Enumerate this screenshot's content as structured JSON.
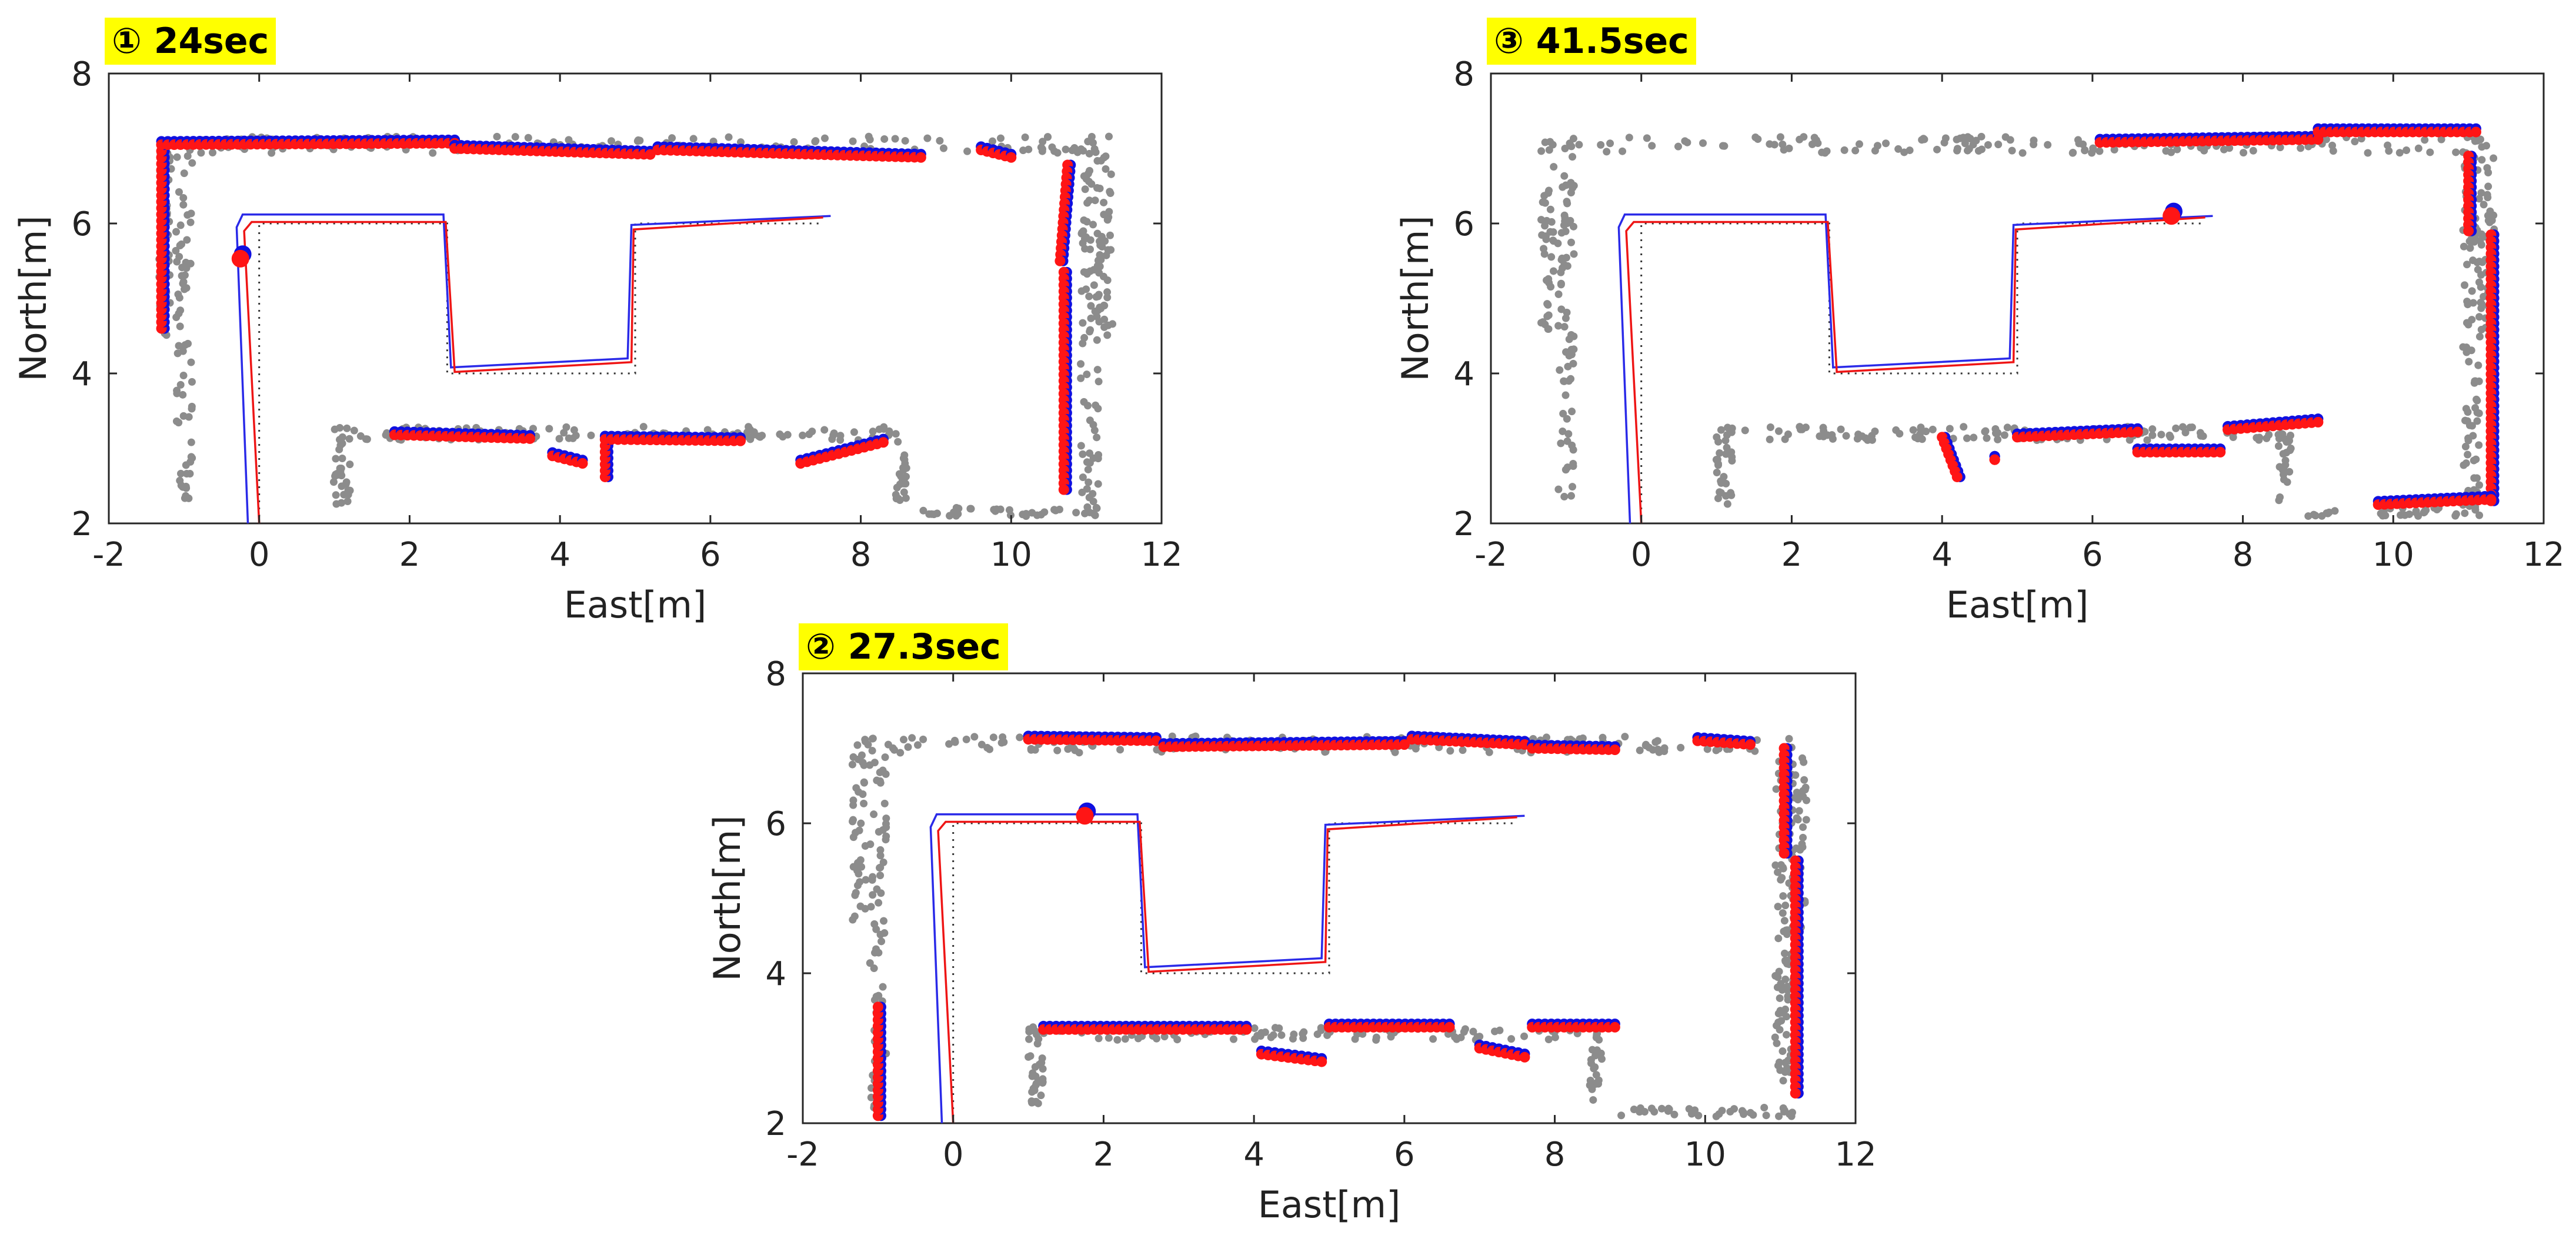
{
  "colors": {
    "obstacle": "#8c8c8c",
    "map_blue": "#1010e0",
    "map_red": "#ff1515",
    "path_blue": "#2a2ae8",
    "path_red": "#ee1515",
    "reference": "#333333",
    "badge": "#ffff00"
  },
  "chart_data": [
    {
      "id": "panel-1",
      "type": "scatter",
      "badge": "① 24sec",
      "xlabel": "East[m]",
      "ylabel": "North[m]",
      "xlim": [
        -2,
        12
      ],
      "ylim": [
        2,
        8
      ],
      "xticks": [
        "-2",
        "0",
        "2",
        "4",
        "6",
        "8",
        "10",
        "12"
      ],
      "yticks": [
        "2",
        "4",
        "6",
        "8"
      ],
      "robot_position": [
        -0.25,
        5.53
      ],
      "estimated_segments": [
        {
          "x": [
            -1.3,
            -1.3
          ],
          "y": [
            4.6,
            7.05
          ]
        },
        {
          "x": [
            -1.3,
            2.6
          ],
          "y": [
            7.05,
            7.07
          ]
        },
        {
          "x": [
            2.6,
            5.2
          ],
          "y": [
            7.0,
            6.92
          ]
        },
        {
          "x": [
            5.3,
            8.8
          ],
          "y": [
            6.98,
            6.88
          ]
        },
        {
          "x": [
            9.6,
            10.0
          ],
          "y": [
            6.98,
            6.88
          ]
        },
        {
          "x": [
            10.75,
            10.65
          ],
          "y": [
            6.78,
            5.5
          ]
        },
        {
          "x": [
            10.7,
            10.7
          ],
          "y": [
            5.35,
            2.45
          ]
        },
        {
          "x": [
            1.8,
            3.6
          ],
          "y": [
            3.18,
            3.13
          ]
        },
        {
          "x": [
            3.9,
            4.3
          ],
          "y": [
            2.9,
            2.8
          ]
        },
        {
          "x": [
            4.6,
            4.6
          ],
          "y": [
            2.62,
            3.12
          ]
        },
        {
          "x": [
            4.6,
            6.4
          ],
          "y": [
            3.12,
            3.1
          ]
        },
        {
          "x": [
            7.2,
            8.3
          ],
          "y": [
            2.8,
            3.08
          ]
        }
      ]
    },
    {
      "id": "panel-3",
      "type": "scatter",
      "badge": "③ 41.5sec",
      "xlabel": "East[m]",
      "ylabel": "North[m]",
      "xlim": [
        -2,
        12
      ],
      "ylim": [
        2,
        8
      ],
      "xticks": [
        "-2",
        "0",
        "2",
        "4",
        "6",
        "8",
        "10",
        "12"
      ],
      "yticks": [
        "2",
        "4",
        "6",
        "8"
      ],
      "robot_position": [
        7.05,
        6.1
      ],
      "estimated_segments": [
        {
          "x": [
            6.1,
            9.0
          ],
          "y": [
            7.08,
            7.12
          ]
        },
        {
          "x": [
            9.0,
            11.1
          ],
          "y": [
            7.22,
            7.22
          ]
        },
        {
          "x": [
            11.0,
            11.0
          ],
          "y": [
            6.9,
            5.9
          ]
        },
        {
          "x": [
            11.3,
            11.3
          ],
          "y": [
            5.85,
            2.3
          ]
        },
        {
          "x": [
            9.8,
            11.3
          ],
          "y": [
            2.25,
            2.32
          ]
        },
        {
          "x": [
            5.0,
            6.6
          ],
          "y": [
            3.15,
            3.22
          ]
        },
        {
          "x": [
            6.6,
            7.7
          ],
          "y": [
            2.95,
            2.95
          ]
        },
        {
          "x": [
            7.8,
            9.0
          ],
          "y": [
            3.25,
            3.35
          ]
        },
        {
          "x": [
            4.0,
            4.2
          ],
          "y": [
            3.15,
            2.62
          ]
        },
        {
          "x": [
            4.7,
            4.7
          ],
          "y": [
            2.85,
            2.85
          ]
        }
      ]
    },
    {
      "id": "panel-2",
      "type": "scatter",
      "badge": "② 27.3sec",
      "xlabel": "East[m]",
      "ylabel": "North[m]",
      "xlim": [
        -2,
        12
      ],
      "ylim": [
        2,
        8
      ],
      "xticks": [
        "-2",
        "0",
        "2",
        "4",
        "6",
        "8",
        "10",
        "12"
      ],
      "yticks": [
        "2",
        "4",
        "6",
        "8"
      ],
      "robot_position": [
        1.75,
        6.1
      ],
      "estimated_segments": [
        {
          "x": [
            -1.0,
            -1.0
          ],
          "y": [
            2.1,
            3.55
          ]
        },
        {
          "x": [
            1.0,
            2.7
          ],
          "y": [
            7.12,
            7.1
          ]
        },
        {
          "x": [
            2.8,
            6.0
          ],
          "y": [
            7.02,
            7.05
          ]
        },
        {
          "x": [
            6.1,
            7.6
          ],
          "y": [
            7.12,
            7.05
          ]
        },
        {
          "x": [
            7.7,
            8.8
          ],
          "y": [
            7.0,
            6.98
          ]
        },
        {
          "x": [
            9.9,
            10.6
          ],
          "y": [
            7.1,
            7.05
          ]
        },
        {
          "x": [
            11.05,
            11.05
          ],
          "y": [
            7.0,
            5.6
          ]
        },
        {
          "x": [
            11.2,
            11.2
          ],
          "y": [
            5.5,
            2.4
          ]
        },
        {
          "x": [
            1.2,
            3.9
          ],
          "y": [
            3.25,
            3.25
          ]
        },
        {
          "x": [
            4.1,
            4.9
          ],
          "y": [
            2.92,
            2.82
          ]
        },
        {
          "x": [
            5.0,
            6.6
          ],
          "y": [
            3.28,
            3.28
          ]
        },
        {
          "x": [
            7.0,
            7.6
          ],
          "y": [
            3.0,
            2.88
          ]
        },
        {
          "x": [
            7.7,
            8.8
          ],
          "y": [
            3.28,
            3.28
          ]
        }
      ]
    }
  ],
  "trajectory": {
    "reference": [
      [
        0,
        2
      ],
      [
        0,
        6
      ],
      [
        2.5,
        6
      ],
      [
        2.5,
        4
      ],
      [
        5,
        4
      ],
      [
        5,
        6
      ],
      [
        7.5,
        6
      ]
    ],
    "blue": [
      [
        -0.15,
        2
      ],
      [
        -0.3,
        5.95
      ],
      [
        -0.22,
        6.12
      ],
      [
        2.45,
        6.12
      ],
      [
        2.55,
        4.08
      ],
      [
        4.9,
        4.2
      ],
      [
        4.95,
        5.98
      ],
      [
        7.6,
        6.1
      ]
    ],
    "red": [
      [
        0.0,
        2
      ],
      [
        -0.2,
        5.9
      ],
      [
        -0.1,
        6.02
      ],
      [
        2.48,
        6.02
      ],
      [
        2.6,
        4.02
      ],
      [
        4.95,
        4.15
      ],
      [
        4.98,
        5.92
      ],
      [
        7.5,
        6.08
      ]
    ]
  },
  "obstacles": {
    "left_wall": {
      "x": -1.0,
      "y": [
        2.2,
        6.9
      ]
    },
    "left_wall_outer": {
      "x": -1.25,
      "y": [
        4.5,
        7.1
      ]
    },
    "top_wall": {
      "x": [
        -1.2,
        11.3
      ],
      "y": 7.05
    },
    "right_wall": {
      "x": 11.05,
      "y": [
        2.2,
        7.0
      ]
    },
    "right_wall_outer": {
      "x": 11.25,
      "y": [
        4.5,
        6.9
      ]
    },
    "bottom_wall": {
      "x": [
        8.8,
        11.2
      ],
      "y": 2.15
    },
    "inner_left": {
      "x": 1.1,
      "y": [
        2.2,
        3.3
      ]
    },
    "inner_top": {
      "x": [
        1.0,
        8.4
      ],
      "y": 3.2
    },
    "inner_right": {
      "x": 8.55,
      "y": [
        2.3,
        3.2
      ]
    }
  }
}
